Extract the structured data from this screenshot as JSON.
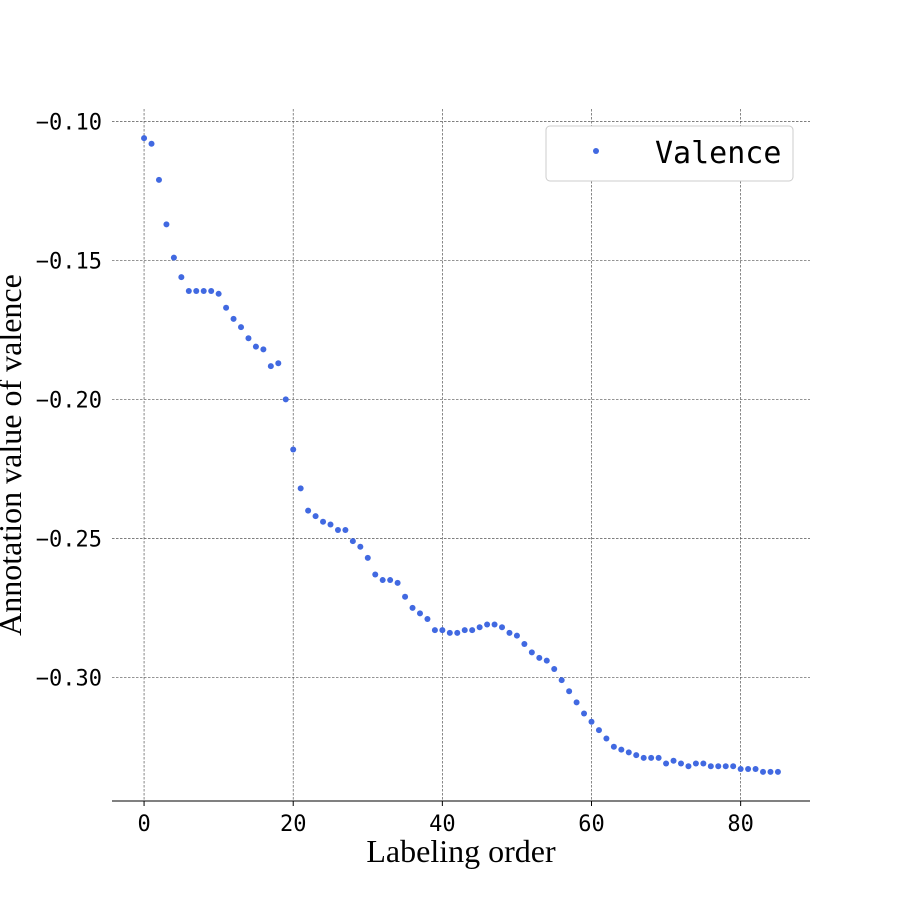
{
  "chart_data": {
    "type": "scatter",
    "xlabel": "Labeling order",
    "ylabel": "Annotation value of valence",
    "xlim": [
      -4.3,
      89.3
    ],
    "ylim": [
      -0.3445,
      -0.0955
    ],
    "x_ticks": [
      0,
      20,
      40,
      60,
      80
    ],
    "y_ticks": [
      -0.1,
      -0.15,
      -0.2,
      -0.25,
      -0.3
    ],
    "x_tick_labels": [
      "0",
      "20",
      "40",
      "60",
      "80"
    ],
    "y_tick_labels": [
      "−0.10",
      "−0.15",
      "−0.20",
      "−0.25",
      "−0.30"
    ],
    "grid": true,
    "legend_position": "upper right",
    "color": "#4169e1",
    "series": [
      {
        "name": "Valence",
        "x": [
          0,
          1,
          2,
          3,
          4,
          5,
          6,
          7,
          8,
          9,
          10,
          11,
          12,
          13,
          14,
          15,
          16,
          17,
          18,
          19,
          20,
          21,
          22,
          23,
          24,
          25,
          26,
          27,
          28,
          29,
          30,
          31,
          32,
          33,
          34,
          35,
          36,
          37,
          38,
          39,
          40,
          41,
          42,
          43,
          44,
          45,
          46,
          47,
          48,
          49,
          50,
          51,
          52,
          53,
          54,
          55,
          56,
          57,
          58,
          59,
          60,
          61,
          62,
          63,
          64,
          65,
          66,
          67,
          68,
          69,
          70,
          71,
          72,
          73,
          74,
          75,
          76,
          77,
          78,
          79,
          80,
          81,
          82,
          83,
          84,
          85
        ],
        "y": [
          -0.106,
          -0.108,
          -0.121,
          -0.137,
          -0.149,
          -0.156,
          -0.161,
          -0.161,
          -0.161,
          -0.161,
          -0.162,
          -0.167,
          -0.171,
          -0.174,
          -0.178,
          -0.181,
          -0.182,
          -0.188,
          -0.187,
          -0.2,
          -0.218,
          -0.232,
          -0.24,
          -0.242,
          -0.244,
          -0.245,
          -0.247,
          -0.247,
          -0.251,
          -0.253,
          -0.257,
          -0.263,
          -0.265,
          -0.265,
          -0.266,
          -0.271,
          -0.275,
          -0.277,
          -0.279,
          -0.283,
          -0.283,
          -0.284,
          -0.284,
          -0.283,
          -0.283,
          -0.282,
          -0.281,
          -0.281,
          -0.282,
          -0.284,
          -0.285,
          -0.288,
          -0.291,
          -0.293,
          -0.294,
          -0.297,
          -0.301,
          -0.305,
          -0.309,
          -0.313,
          -0.316,
          -0.319,
          -0.322,
          -0.325,
          -0.326,
          -0.327,
          -0.328,
          -0.329,
          -0.329,
          -0.329,
          -0.331,
          -0.33,
          -0.331,
          -0.332,
          -0.331,
          -0.331,
          -0.332,
          -0.332,
          -0.332,
          -0.332,
          -0.333,
          -0.333,
          -0.333,
          -0.334,
          -0.334,
          -0.334
        ]
      }
    ]
  }
}
